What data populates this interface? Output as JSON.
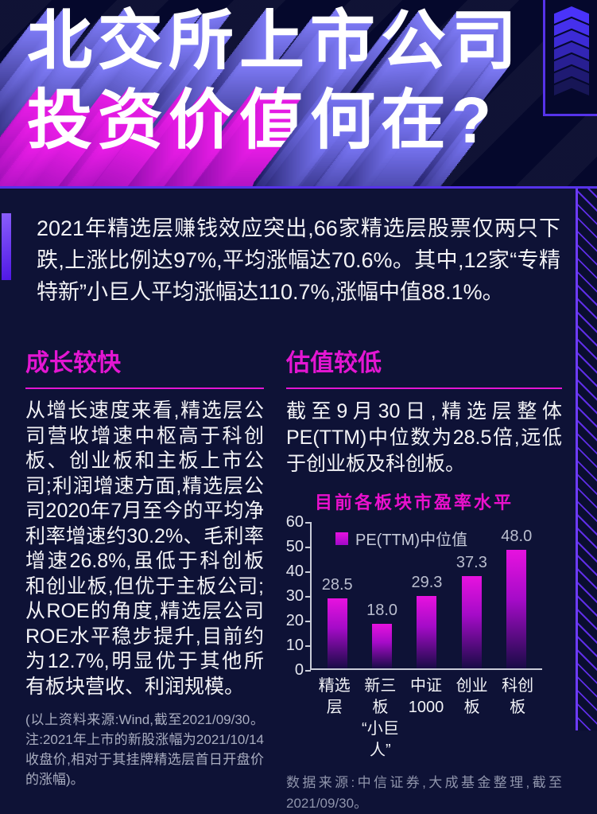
{
  "header": {
    "title_line1": "北交所上市公司",
    "title_line2_a": "投资价值",
    "title_line2_b": "何在?"
  },
  "intro": {
    "text": "2021年精选层赚钱效应突出,66家精选层股票仅两只下跌,上涨比例达97%,平均涨幅达70.6%。其中,12家“专精特新”小巨人平均涨幅达110.7%,涨幅中值88.1%。"
  },
  "sections": {
    "growth": {
      "heading": "成长较快",
      "body": "从增长速度来看,精选层公司营收增速中枢高于科创板、创业板和主板上市公司;利润增速方面,精选层公司2020年7月至今的平均净利率增速约30.2%、毛利率增速26.8%,虽低于科创板和创业板,但优于主板公司;从ROE的角度,精选层公司ROE水平稳步提升,目前约为12.7%,明显优于其他所有板块营收、利润规模。",
      "footnote": "(以上资料来源:Wind,截至2021/09/30。注:2021年上市的新股涨幅为2021/10/14收盘价,相对于其挂牌精选层首日开盘价的涨幅)。"
    },
    "valuation": {
      "heading": "估值较低",
      "body": "截至9月30日,精选层整体PE(TTM)中位数为28.5倍,远低于创业板及科创板。",
      "source": "数据来源:中信证券,大成基金整理,截至2021/09/30。"
    }
  },
  "chart_data": {
    "type": "bar",
    "title": "目前各板块市盈率水平",
    "legend": "PE(TTM)中位值",
    "categories": [
      "精选层",
      "新三板“小巨人”",
      "中证1000",
      "创业板",
      "科创板"
    ],
    "xlabels": [
      "精选层",
      "新三板\n“小巨人”",
      "中证\n1000",
      "创业板",
      "科创板"
    ],
    "values": [
      28.5,
      18.0,
      29.3,
      37.3,
      48.0
    ],
    "value_labels": [
      "28.5",
      "18.0",
      "29.3",
      "37.3",
      "48.0"
    ],
    "ylabel": "",
    "xlabel": "",
    "ylim": [
      0,
      60
    ],
    "yticks": [
      0,
      10,
      20,
      30,
      40,
      50,
      60
    ],
    "legend_position": "top-left",
    "grid": false
  },
  "colors": {
    "background": "#0e1236",
    "band": "#05082c",
    "purple": "#5633ea",
    "magenta": "#e316d2",
    "bar_top": "#e712df",
    "bar_bottom": "#190b46"
  }
}
